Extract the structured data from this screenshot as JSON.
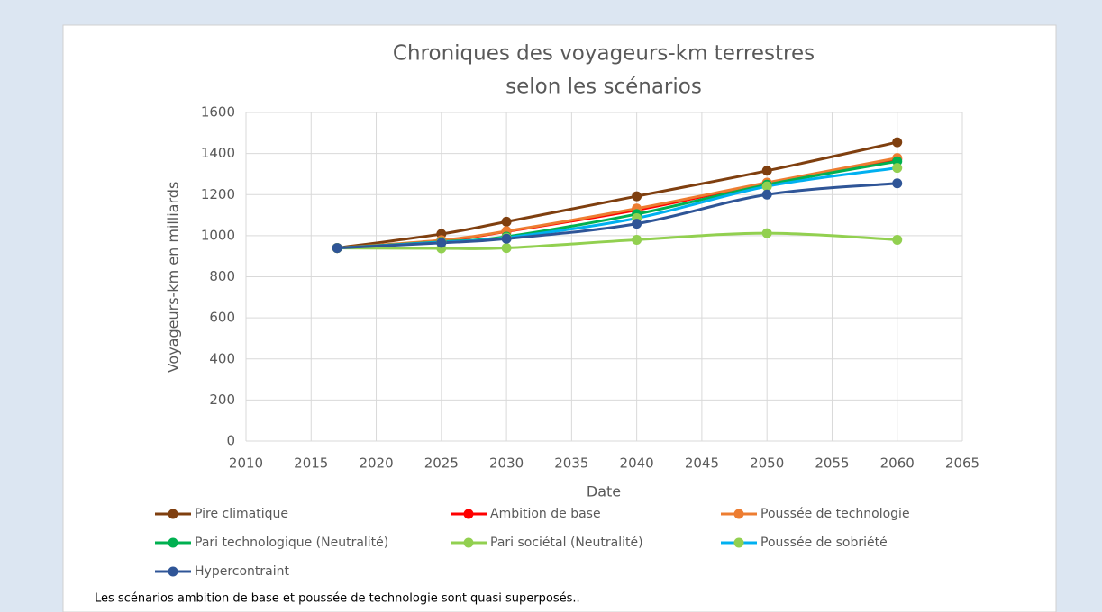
{
  "chart_data": {
    "type": "line",
    "title": [
      "Chroniques des voyageurs-km terrestres",
      "selon les scénarios"
    ],
    "x_label": "Date",
    "y_label": "Voyageurs-km en milliards",
    "x": [
      2017,
      2025,
      2030,
      2040,
      2050,
      2060
    ],
    "series": [
      {
        "name": "Pire climatique",
        "color": "#7f3f0f",
        "values": [
          940,
          1008,
          1068,
          1192,
          1316,
          1455
        ]
      },
      {
        "name": "Ambition de base",
        "color": "#ff0000",
        "values": [
          940,
          975,
          1020,
          1125,
          1255,
          1372
        ]
      },
      {
        "name": "Poussée de technologie",
        "color": "#ed7d31",
        "values": [
          940,
          978,
          1022,
          1132,
          1258,
          1378
        ]
      },
      {
        "name": "Pari technologique (Neutralité)",
        "color": "#00b050",
        "values": [
          940,
          970,
          995,
          1105,
          1248,
          1362
        ]
      },
      {
        "name": "Pari sociétal (Neutralité)",
        "color": "#92d050",
        "values": [
          940,
          938,
          940,
          980,
          1012,
          980
        ]
      },
      {
        "name": "Poussée de sobriété",
        "color": "#00b0f0",
        "marker_color": "#92d050",
        "values": [
          940,
          968,
          990,
          1085,
          1240,
          1330
        ]
      },
      {
        "name": "Hypercontraint",
        "color": "#2f5597",
        "values": [
          940,
          965,
          985,
          1058,
          1200,
          1255
        ]
      }
    ],
    "xlim": [
      2010,
      2065
    ],
    "xticks": [
      2010,
      2015,
      2020,
      2025,
      2030,
      2035,
      2040,
      2045,
      2050,
      2055,
      2060,
      2065
    ],
    "ylim": [
      0,
      1600
    ],
    "yticks": [
      0,
      200,
      400,
      600,
      800,
      1000,
      1200,
      1400,
      1600
    ],
    "grid": true,
    "smooth": true,
    "legend": "bottom"
  },
  "caption": "Les scénarios ambition de base et poussée de technologie sont quasi superposés.."
}
